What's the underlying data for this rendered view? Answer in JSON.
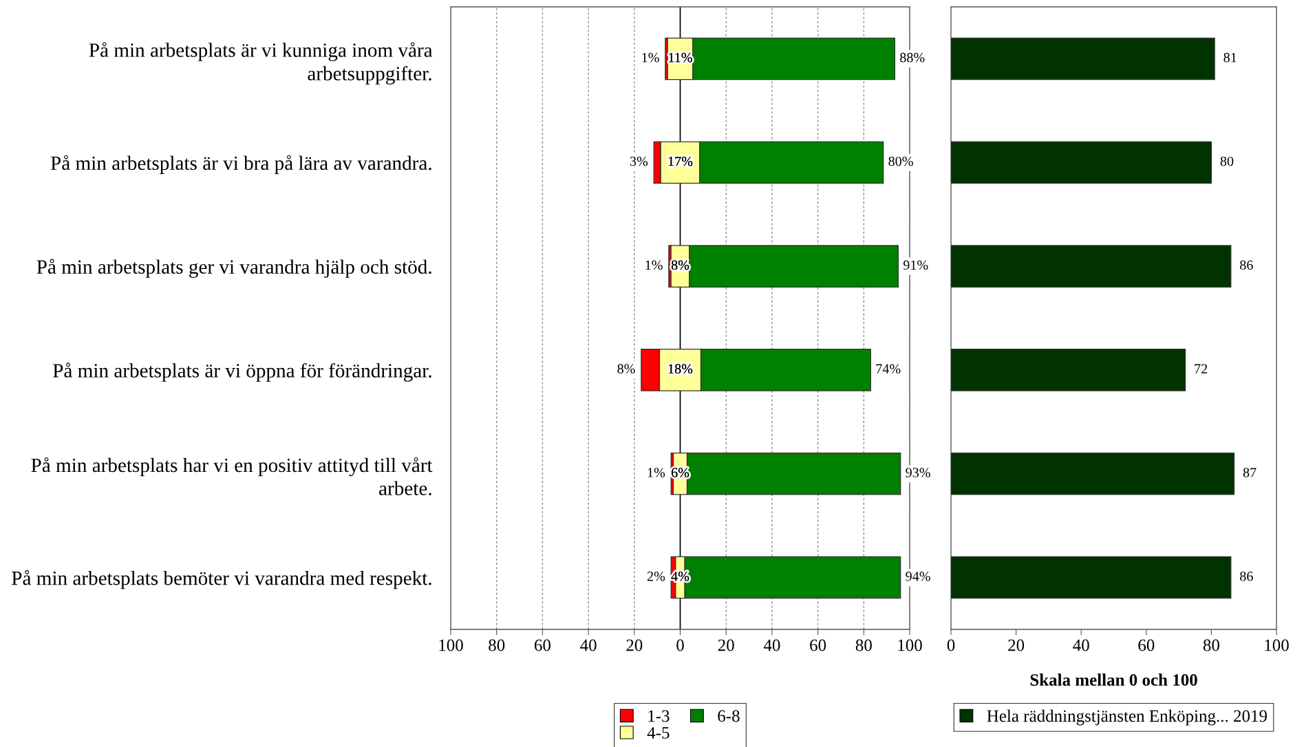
{
  "chart_data": [
    {
      "type": "bar",
      "orientation": "horizontal",
      "categories": [
        "På min arbetsplats är vi kunniga inom våra arbetsuppgifter.",
        "På min arbetsplats är vi bra på lära av varandra.",
        "På min arbetsplats ger vi varandra hjälp och stöd.",
        "På min arbetsplats är vi öppna för förändringar.",
        "På min arbetsplats har vi en positiv attityd till vårt arbete.",
        "På min arbetsplats bemöter vi varandra med respekt."
      ],
      "series": [
        {
          "name": "1-3",
          "color": "#ff0000",
          "values": [
            1,
            3,
            1,
            8,
            1,
            2
          ],
          "base": [
            -6.5,
            -11.5,
            -5,
            -17,
            -4,
            -4
          ],
          "value_labels": [
            "1%",
            "3%",
            "1%",
            "8%",
            "1%",
            "2%"
          ]
        },
        {
          "name": "4-5",
          "color": "#ffff99",
          "values": [
            11,
            17,
            8,
            18,
            6,
            4
          ],
          "base": [
            -5.5,
            -8.5,
            -4,
            -9,
            -3,
            -2
          ],
          "value_labels": [
            "11%",
            "17%",
            "8%",
            "18%",
            "6%",
            "4%"
          ]
        },
        {
          "name": "6-8",
          "color": "#008000",
          "values": [
            88,
            80,
            91,
            74,
            93,
            94
          ],
          "base": [
            5.5,
            8.5,
            4,
            9,
            3,
            2
          ],
          "value_labels": [
            "88%",
            "80%",
            "91%",
            "74%",
            "93%",
            "94%"
          ]
        }
      ],
      "xlim": [
        -100,
        100
      ],
      "xticks": [
        {
          "value": -100,
          "label": "100"
        },
        {
          "value": -80,
          "label": "80"
        },
        {
          "value": -60,
          "label": "60"
        },
        {
          "value": -40,
          "label": "40"
        },
        {
          "value": -20,
          "label": "20"
        },
        0,
        20,
        40,
        60,
        80,
        100
      ],
      "grid": "x",
      "ref_lines": [
        {
          "axis": "x",
          "value": 0,
          "color": "#000000"
        }
      ],
      "legend": "bottom"
    },
    {
      "type": "bar",
      "orientation": "horizontal",
      "categories": [
        null,
        null,
        null,
        null,
        null,
        null
      ],
      "series": [
        {
          "name": "Hela räddningstjänsten Enköping... 2019",
          "color": "#003300",
          "values": [
            81,
            80,
            86,
            72,
            87,
            86
          ]
        }
      ],
      "data_labels": true,
      "xlim": [
        0,
        100
      ],
      "xticks": [
        0,
        20,
        40,
        60,
        80,
        100
      ],
      "xlabel": "Skala mellan 0 och 100",
      "legend": "bottom"
    }
  ]
}
